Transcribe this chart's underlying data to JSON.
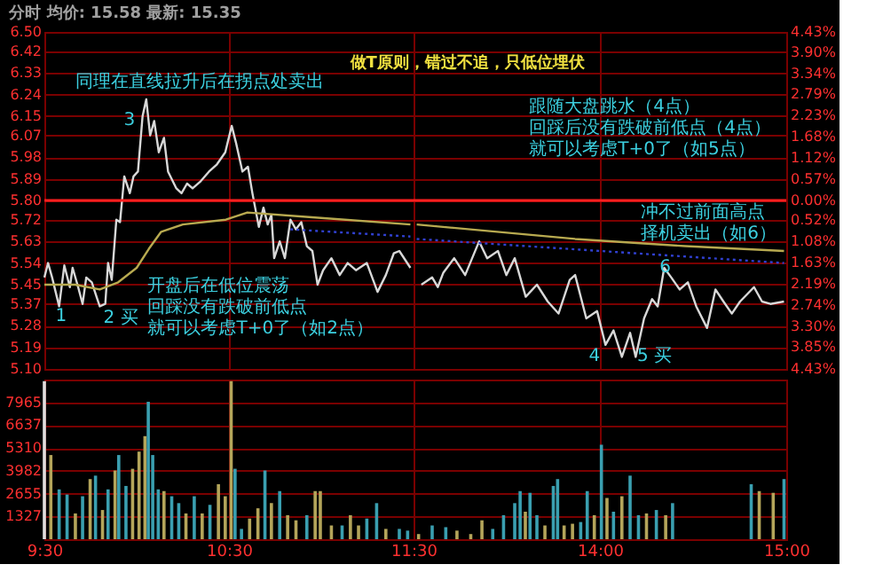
{
  "chart_data": [
    {
      "type": "line",
      "title": "分时 均价: 15.58 最新: 15.35",
      "xlim": [
        9.5,
        11.5
      ],
      "xticks": [
        {
          "value": 9.5,
          "label": null
        },
        {
          "value": 10.5,
          "label": null
        },
        {
          "value": 11.5,
          "label": null
        }
      ],
      "ylim": [
        5.1,
        6.5
      ],
      "yticks": [
        {
          "value": 5.1,
          "label": "5.10"
        },
        5.19,
        5.28,
        5.37,
        5.45,
        5.54,
        5.63,
        5.72,
        {
          "value": 5.8,
          "label": "5.80"
        },
        5.89,
        5.98,
        6.07,
        6.15,
        6.24,
        6.33,
        6.42,
        {
          "value": 6.5,
          "label": "6.50"
        }
      ],
      "grid": true,
      "tick_labels": "y",
      "ref_lines": [
        {
          "axis": "y",
          "value": 5.8,
          "color": "#ff2020"
        }
      ],
      "series": [
        {
          "color": "#d8d8d8",
          "x": [
            9.5,
            9.52,
            9.542,
            9.58,
            9.608,
            9.638,
            9.653,
            9.683,
            9.707,
            9.727,
            9.757,
            9.787,
            9.8,
            9.83,
            9.845,
            9.865,
            9.89,
            9.91,
            9.933,
            9.963,
            9.983,
            10.007,
            10.032,
            10.052,
            10.073,
            10.095,
            10.12,
            10.148,
            10.17,
            10.215,
            10.243,
            10.273,
            10.303,
            10.347,
            10.392,
            10.435,
            10.48,
            10.515,
            10.538,
            10.573,
            10.603,
            10.627,
            10.662,
            10.687,
            10.71,
            10.73,
            10.745,
            10.775,
            10.803,
            10.833,
            10.863,
            10.892,
            10.922,
            10.952,
            10.98,
            11.01,
            11.055,
            11.1,
            11.143,
            11.188,
            11.247,
            11.305,
            11.35,
            11.393,
            11.423,
            11.483
          ],
          "values": [
            5.48,
            5.54,
            5.48,
            5.36,
            5.53,
            5.44,
            5.52,
            5.44,
            5.37,
            5.48,
            5.46,
            5.39,
            5.36,
            5.37,
            5.54,
            5.47,
            5.72,
            5.71,
            5.9,
            5.83,
            5.9,
            5.92,
            6.15,
            6.22,
            6.07,
            6.13,
            6.0,
            6.06,
            5.92,
            5.85,
            5.83,
            5.87,
            5.85,
            5.88,
            5.92,
            5.95,
            6.0,
            6.11,
            6.04,
            5.92,
            5.94,
            5.83,
            5.69,
            5.77,
            5.7,
            5.74,
            5.56,
            5.63,
            5.56,
            5.72,
            5.68,
            5.71,
            5.61,
            5.59,
            5.45,
            5.51,
            5.56,
            5.49,
            5.54,
            5.51,
            5.54,
            5.42,
            5.49,
            5.58,
            5.59,
            5.52
          ]
        },
        {
          "color": "#b8aa50",
          "x": [
            9.5,
            9.667,
            9.8,
            9.9,
            10,
            10.067,
            10.133,
            10.25,
            10.483,
            10.6,
            10.95,
            11.483
          ],
          "values": [
            5.45,
            5.45,
            5.43,
            5.46,
            5.52,
            5.6,
            5.67,
            5.7,
            5.72,
            5.75,
            5.73,
            5.7
          ]
        },
        {
          "color": "#3040d0",
          "line_style": "dotted",
          "x": [
            10.833,
            11.483
          ],
          "values": [
            5.68,
            5.65
          ]
        }
      ],
      "annotations": [
        "同理在直线拉升后在拐点处卖出",
        "3",
        "1",
        "2 买",
        "开盘后在低位震荡回踩没有跌破前低点就可以考虑T+0了（如2点）"
      ]
    },
    {
      "type": "line",
      "subtitle": "做T原则，错过不追，只低位埋伏",
      "xlim": [
        13,
        15
      ],
      "ylim": [
        5.1,
        6.5
      ],
      "y2lim": [
        -4.43,
        4.43
      ],
      "y2ticks": [
        {
          "value": -4.43,
          "label": "4.43%"
        },
        {
          "value": -3.85,
          "label": "3.85%"
        },
        {
          "value": -3.3,
          "label": "3.30%"
        },
        {
          "value": -2.74,
          "label": "2.74%"
        },
        {
          "value": -2.19,
          "label": "2.19%"
        },
        {
          "value": -1.63,
          "label": "1.63%"
        },
        {
          "value": -1.08,
          "label": "1.08%"
        },
        {
          "value": -0.52,
          "label": "0.52%"
        },
        {
          "value": 0,
          "label": "0.00%"
        },
        {
          "value": 0.57,
          "label": "0.57%"
        },
        {
          "value": 1.12,
          "label": "1.12%"
        },
        {
          "value": 1.68,
          "label": "1.68%"
        },
        {
          "value": 2.23,
          "label": "2.23%"
        },
        {
          "value": 2.79,
          "label": "2.79%"
        },
        {
          "value": 3.34,
          "label": "3.34%"
        },
        {
          "value": 3.9,
          "label": "3.90%"
        },
        {
          "value": 4.43,
          "label": "4.43%"
        }
      ],
      "grid": true,
      "tick_labels": "y2",
      "ref_lines": [
        {
          "axis": "y2",
          "value": 0,
          "color": "#ff2020"
        }
      ],
      "series": [
        {
          "color": "#d8d8d8",
          "x": [
            13.042,
            13.1,
            13.13,
            13.16,
            13.218,
            13.277,
            13.352,
            13.395,
            13.453,
            13.498,
            13.543,
            13.602,
            13.662,
            13.72,
            13.778,
            13.838,
            13.867,
            13.927,
            13.985,
            14.03,
            14.073,
            14.118,
            14.162,
            14.192,
            14.237,
            14.28,
            14.31,
            14.345,
            14.383,
            14.428,
            14.472,
            14.517,
            14.575,
            14.62,
            14.663,
            14.708,
            14.752,
            14.827,
            14.87,
            14.915,
            14.988
          ],
          "values": [
            5.45,
            5.48,
            5.44,
            5.5,
            5.56,
            5.49,
            5.63,
            5.56,
            5.59,
            5.49,
            5.56,
            5.4,
            5.45,
            5.38,
            5.33,
            5.47,
            5.49,
            5.31,
            5.34,
            5.2,
            5.26,
            5.15,
            5.25,
            5.15,
            5.31,
            5.39,
            5.36,
            5.52,
            5.48,
            5.43,
            5.46,
            5.36,
            5.27,
            5.43,
            5.38,
            5.33,
            5.38,
            5.44,
            5.38,
            5.37,
            5.38
          ]
        },
        {
          "color": "#b8aa50",
          "x": [
            13.017,
            13.867,
            14.458,
            14.988
          ],
          "values": [
            5.7,
            5.64,
            5.61,
            5.59
          ]
        },
        {
          "color": "#3040d0",
          "line_style": "dotted",
          "x": [
            13.017,
            14.988
          ],
          "values": [
            5.64,
            5.54
          ]
        }
      ],
      "annotations": [
        "跟随大盘跳水（4点）回踩后没有跌破前低点（4点）就可以考虑T+0了（如5点）",
        "冲不过前面高点择机卖出（如6）",
        "4",
        "5 买",
        "6"
      ]
    },
    {
      "type": "bar",
      "xlim": [
        9.5,
        11.5
      ],
      "xticks": [
        {
          "value": 9.5,
          "label": "9:30"
        },
        {
          "value": 10.5,
          "label": "10:30"
        },
        {
          "value": 11.5,
          "label": "11:30"
        }
      ],
      "ylim": [
        0,
        9292
      ],
      "yticks": [
        1327,
        2655,
        3982,
        5310,
        6637,
        7965
      ],
      "grid": true,
      "x": [
        9.5,
        9.535,
        9.58,
        9.623,
        9.668,
        9.707,
        9.748,
        9.777,
        9.815,
        9.845,
        9.883,
        9.903,
        9.942,
        9.978,
        10.013,
        10.045,
        10.063,
        10.087,
        10.117,
        10.148,
        10.19,
        10.228,
        10.267,
        10.312,
        10.355,
        10.397,
        10.443,
        10.48,
        10.512,
        10.533,
        10.568,
        10.612,
        10.657,
        10.695,
        10.73,
        10.775,
        10.818,
        10.863,
        10.922,
        10.967,
        10.995,
        11.055,
        11.113,
        11.158,
        11.202,
        11.247,
        11.3,
        11.35,
        11.423,
        11.468
      ],
      "values": [
        9200,
        4900,
        2900,
        2600,
        1500,
        2500,
        3500,
        3700,
        1700,
        2900,
        4000,
        4900,
        3100,
        4100,
        5100,
        6000,
        8000,
        4900,
        2900,
        2800,
        2500,
        2100,
        1500,
        2500,
        1500,
        2000,
        3200,
        2500,
        9200,
        4100,
        600,
        1200,
        1800,
        4000,
        2100,
        2800,
        1400,
        1100,
        1400,
        2800,
        2800,
        800,
        800,
        1400,
        800,
        1200,
        2100,
        600,
        600,
        500
      ],
      "colors": [
        "#e0e0e0",
        "#b4a55a",
        "#3a9fb0",
        "#3a9fb0",
        "#b4a55a",
        "#3a9fb0",
        "#b4a55a",
        "#3a9fb0",
        "#b4a55a",
        "#3a9fb0",
        "#b4a55a",
        "#3a9fb0",
        "#3a9fb0",
        "#b4a55a",
        "#b4a55a",
        "#b4a55a",
        "#3a9fb0",
        "#3a9fb0",
        "#3a9fb0",
        "#b4a55a",
        "#3a9fb0",
        "#3a9fb0",
        "#b4a55a",
        "#3a9fb0",
        "#b4a55a",
        "#3a9fb0",
        "#b4a55a",
        "#b4a55a",
        "#b4a55a",
        "#3a9fb0",
        "#3a9fb0",
        "#b4a55a",
        "#b4a55a",
        "#3a9fb0",
        "#b4a55a",
        "#3a9fb0",
        "#b4a55a",
        "#b4a55a",
        "#3a9fb0",
        "#b4a55a",
        "#b4a55a",
        "#b4a55a",
        "#3a9fb0",
        "#b4a55a",
        "#b4a55a",
        "#3a9fb0",
        "#3a9fb0",
        "#b4a55a",
        "#3a9fb0",
        "#3a9fb0"
      ]
    },
    {
      "type": "bar",
      "xlim": [
        13,
        15
      ],
      "xticks": [
        {
          "value": 14,
          "label": "14:00"
        },
        {
          "value": 15,
          "label": "15:00"
        }
      ],
      "ylim": [
        0,
        9292
      ],
      "grid": true,
      "tick_labels": "x",
      "x": [
        13.027,
        13.1,
        13.173,
        13.233,
        13.307,
        13.367,
        13.425,
        13.483,
        13.543,
        13.572,
        13.6,
        13.625,
        13.662,
        13.705,
        13.75,
        13.773,
        13.808,
        13.853,
        13.897,
        13.932,
        13.97,
        14.008,
        14.038,
        14.073,
        14.118,
        14.162,
        14.207,
        14.25,
        14.303,
        14.353,
        14.39,
        14.812,
        14.855,
        14.93,
        14.988
      ],
      "values": [
        300,
        800,
        700,
        500,
        300,
        1100,
        600,
        1400,
        2100,
        2800,
        1600,
        2700,
        1400,
        800,
        3100,
        3500,
        800,
        900,
        1000,
        2800,
        1400,
        5500,
        2400,
        1600,
        2500,
        3700,
        1400,
        1500,
        1700,
        1400,
        2100,
        3200,
        2800,
        2700,
        3500
      ],
      "colors": [
        "#b4a55a",
        "#3a9fb0",
        "#3a9fb0",
        "#b4a55a",
        "#b4a55a",
        "#b4a55a",
        "#3a9fb0",
        "#3a9fb0",
        "#3a9fb0",
        "#3a9fb0",
        "#b4a55a",
        "#3a9fb0",
        "#3a9fb0",
        "#b4a55a",
        "#3a9fb0",
        "#3a9fb0",
        "#b4a55a",
        "#b4a55a",
        "#3a9fb0",
        "#3a9fb0",
        "#b4a55a",
        "#3a9fb0",
        "#b4a55a",
        "#3a9fb0",
        "#b4a55a",
        "#3a9fb0",
        "#3a9fb0",
        "#b4a55a",
        "#3a9fb0",
        "#b4a55a",
        "#3a9fb0",
        "#3a9fb0",
        "#b4a55a",
        "#b4a55a",
        "#3a9fb0"
      ]
    }
  ]
}
